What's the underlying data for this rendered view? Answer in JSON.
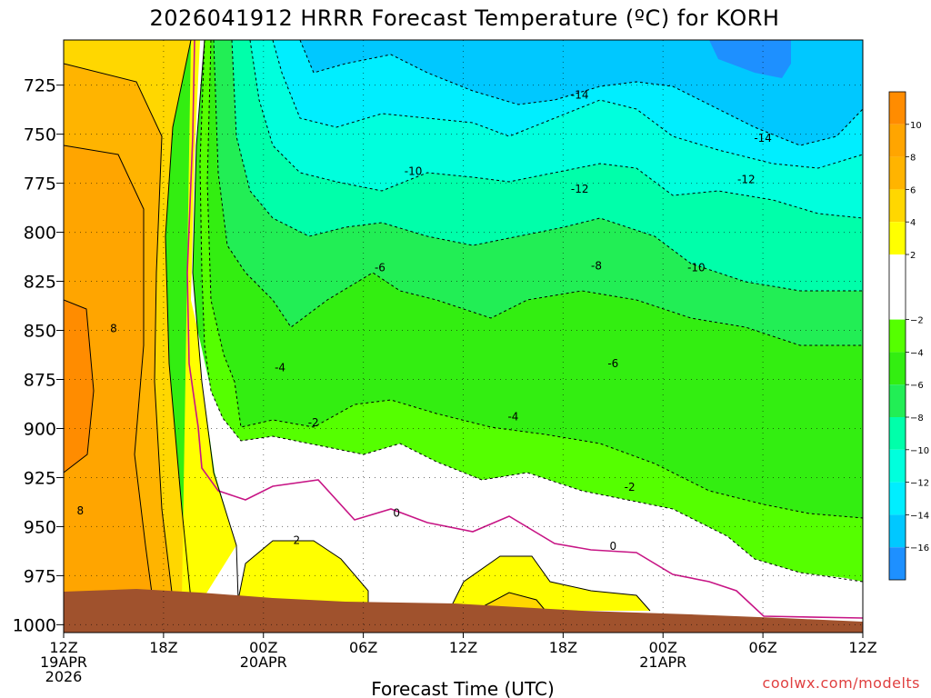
{
  "chart_data": {
    "type": "contour",
    "title": "2026041912 HRRR Forecast Temperature (ºC) for KORH",
    "xlabel": "Forecast Time (UTC)",
    "ylabel": "",
    "credit": "coolwx.com/modelts",
    "y_ticks": [
      725,
      750,
      775,
      800,
      825,
      850,
      875,
      900,
      925,
      950,
      975,
      1000
    ],
    "ylim": [
      1004,
      702
    ],
    "xlim": [
      0,
      48
    ],
    "x_ticks": [
      {
        "hour": 0,
        "lines": [
          "12Z",
          "19APR",
          "2026"
        ]
      },
      {
        "hour": 6,
        "lines": [
          "18Z"
        ]
      },
      {
        "hour": 12,
        "lines": [
          "00Z",
          "20APR"
        ]
      },
      {
        "hour": 18,
        "lines": [
          "06Z"
        ]
      },
      {
        "hour": 24,
        "lines": [
          "12Z"
        ]
      },
      {
        "hour": 30,
        "lines": [
          "18Z"
        ]
      },
      {
        "hour": 36,
        "lines": [
          "00Z",
          "21APR"
        ]
      },
      {
        "hour": 42,
        "lines": [
          "06Z"
        ]
      },
      {
        "hour": 48,
        "lines": [
          "12Z"
        ]
      }
    ],
    "colorbar": {
      "ticks": [
        10,
        8,
        6,
        4,
        2,
        -2,
        -4,
        -6,
        -8,
        -10,
        -12,
        -14,
        -16
      ],
      "bins": [
        {
          "from": 12,
          "to": 10,
          "color": "#ff8c00"
        },
        {
          "from": 10,
          "to": 8,
          "color": "#ffa500"
        },
        {
          "from": 8,
          "to": 6,
          "color": "#ffb400"
        },
        {
          "from": 6,
          "to": 4,
          "color": "#ffd700"
        },
        {
          "from": 4,
          "to": 2,
          "color": "#ffff00"
        },
        {
          "from": 2,
          "to": -2,
          "color": "#ffffff"
        },
        {
          "from": -2,
          "to": -4,
          "color": "#55ff00"
        },
        {
          "from": -4,
          "to": -6,
          "color": "#33ee11"
        },
        {
          "from": -6,
          "to": -8,
          "color": "#22ee55"
        },
        {
          "from": -8,
          "to": -10,
          "color": "#00ffaa"
        },
        {
          "from": -10,
          "to": -12,
          "color": "#00ffdd"
        },
        {
          "from": -12,
          "to": -14,
          "color": "#00eeff"
        },
        {
          "from": -14,
          "to": -16,
          "color": "#00c8ff"
        },
        {
          "from": -16,
          "to": -18,
          "color": "#1e90ff"
        }
      ]
    },
    "ground_color": "#a0522d",
    "freezing_line_color": "#c71585",
    "contour_labels": [
      {
        "text": "8",
        "hour": 3.0,
        "p": 849
      },
      {
        "text": "8",
        "hour": 1.0,
        "p": 942
      },
      {
        "text": "-2",
        "hour": 15.0,
        "p": 897
      },
      {
        "text": "2",
        "hour": 14.0,
        "p": 957
      },
      {
        "text": "-4",
        "hour": 13.0,
        "p": 869
      },
      {
        "text": "-6",
        "hour": 19.0,
        "p": 818
      },
      {
        "text": "-10",
        "hour": 21.0,
        "p": 769
      },
      {
        "text": "0",
        "hour": 20.0,
        "p": 943
      },
      {
        "text": "-4",
        "hour": 27.0,
        "p": 894
      },
      {
        "text": "-6",
        "hour": 33.0,
        "p": 867
      },
      {
        "text": "-8",
        "hour": 32.0,
        "p": 817
      },
      {
        "text": "-12",
        "hour": 31.0,
        "p": 778
      },
      {
        "text": "-14",
        "hour": 31.0,
        "p": 730
      },
      {
        "text": "-2",
        "hour": 34.0,
        "p": 930
      },
      {
        "text": "0",
        "hour": 33.0,
        "p": 960
      },
      {
        "text": "-10",
        "hour": 38.0,
        "p": 818
      },
      {
        "text": "-12",
        "hour": 41.0,
        "p": 773
      },
      {
        "text": "-14",
        "hour": 42.0,
        "p": 752
      }
    ]
  }
}
